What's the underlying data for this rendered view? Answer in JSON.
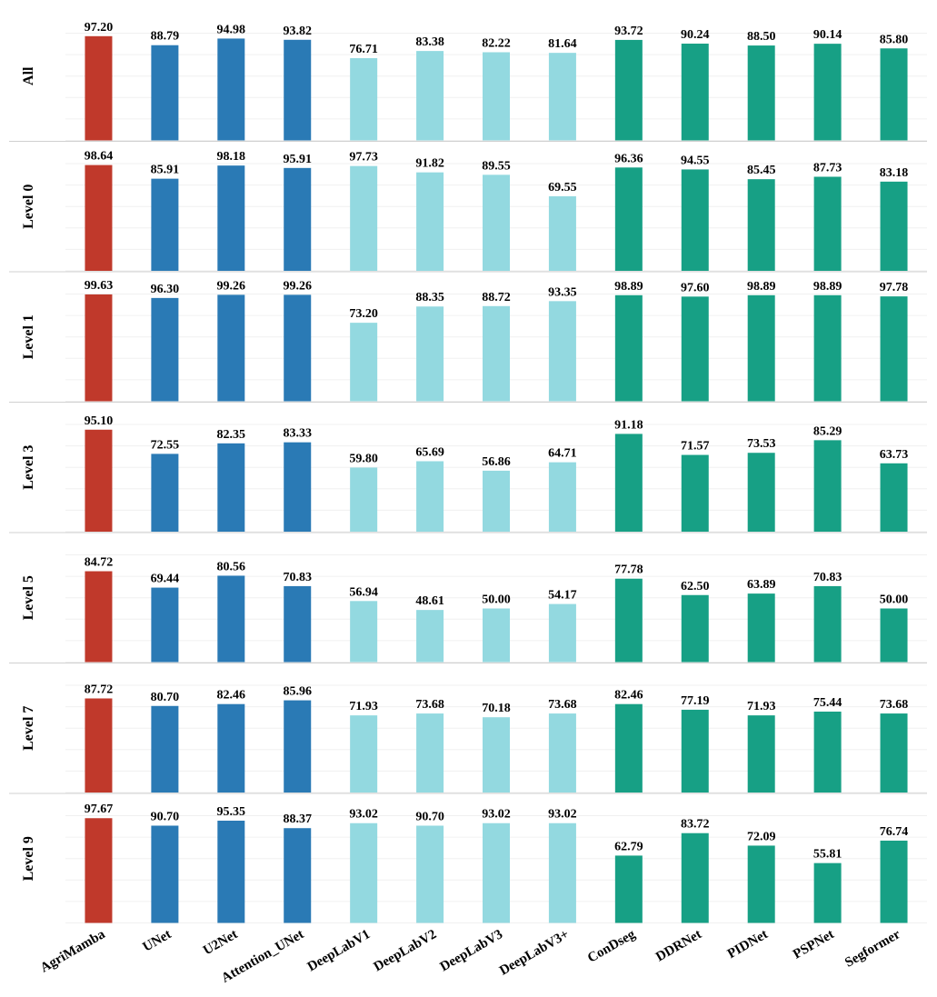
{
  "chart_data": {
    "type": "bar",
    "categories": [
      "AgriMamba",
      "UNet",
      "U2Net",
      "Attention_UNet",
      "DeepLabV1",
      "DeepLabV2",
      "DeepLabV3",
      "DeepLabV3+",
      "ConDseg",
      "DDRNet",
      "PIDNet",
      "PSPNet",
      "Segformer"
    ],
    "colors": [
      "#c0392b",
      "#2a7ab5",
      "#2a7ab5",
      "#2a7ab5",
      "#93d9e0",
      "#93d9e0",
      "#93d9e0",
      "#93d9e0",
      "#17a085",
      "#17a085",
      "#17a085",
      "#17a085",
      "#17a085"
    ],
    "ylim": [
      0,
      100
    ],
    "yticks": [
      0,
      20,
      40,
      60,
      80,
      100
    ],
    "grid": true,
    "series": [
      {
        "name": "All",
        "values": [
          97.2,
          88.79,
          94.98,
          93.82,
          76.71,
          83.38,
          82.22,
          81.64,
          93.72,
          90.24,
          88.5,
          90.14,
          85.8
        ],
        "value_labels": [
          "97.20",
          "88.79",
          "94.98",
          "93.82",
          "76.71",
          "83.38",
          "82.22",
          "81.64",
          "93.72",
          "90.24",
          "88.50",
          "90.14",
          "85.80"
        ]
      },
      {
        "name": "Level 0",
        "values": [
          98.64,
          85.91,
          98.18,
          95.91,
          97.73,
          91.82,
          89.55,
          69.55,
          96.36,
          94.55,
          85.45,
          87.73,
          83.18
        ],
        "value_labels": [
          "98.64",
          "85.91",
          "98.18",
          "95.91",
          "97.73",
          "91.82",
          "89.55",
          "69.55",
          "96.36",
          "94.55",
          "85.45",
          "87.73",
          "83.18"
        ]
      },
      {
        "name": "Level 1",
        "values": [
          99.63,
          96.3,
          99.26,
          99.26,
          73.2,
          88.35,
          88.72,
          93.35,
          98.89,
          97.6,
          98.89,
          98.89,
          97.78
        ],
        "value_labels": [
          "99.63",
          "96.30",
          "99.26",
          "99.26",
          "73.20",
          "88.35",
          "88.72",
          "93.35",
          "98.89",
          "97.60",
          "98.89",
          "98.89",
          "97.78"
        ]
      },
      {
        "name": "Level 3",
        "values": [
          95.1,
          72.55,
          82.35,
          83.33,
          59.8,
          65.69,
          56.86,
          64.71,
          91.18,
          71.57,
          73.53,
          85.29,
          63.73
        ],
        "value_labels": [
          "95.10",
          "72.55",
          "82.35",
          "83.33",
          "59.80",
          "65.69",
          "56.86",
          "64.71",
          "91.18",
          "71.57",
          "73.53",
          "85.29",
          "63.73"
        ]
      },
      {
        "name": "Level 5",
        "values": [
          84.72,
          69.44,
          80.56,
          70.83,
          56.94,
          48.61,
          50.0,
          54.17,
          77.78,
          62.5,
          63.89,
          70.83,
          50.0
        ],
        "value_labels": [
          "84.72",
          "69.44",
          "80.56",
          "70.83",
          "56.94",
          "48.61",
          "50.00",
          "54.17",
          "77.78",
          "62.50",
          "63.89",
          "70.83",
          "50.00"
        ]
      },
      {
        "name": "Level 7",
        "values": [
          87.72,
          80.7,
          82.46,
          85.96,
          71.93,
          73.68,
          70.18,
          73.68,
          82.46,
          77.19,
          71.93,
          75.44,
          73.68
        ],
        "value_labels": [
          "87.72",
          "80.70",
          "82.46",
          "85.96",
          "71.93",
          "73.68",
          "70.18",
          "73.68",
          "82.46",
          "77.19",
          "71.93",
          "75.44",
          "73.68"
        ]
      },
      {
        "name": "Level 9",
        "values": [
          97.67,
          90.7,
          95.35,
          88.37,
          93.02,
          90.7,
          93.02,
          93.02,
          62.79,
          83.72,
          72.09,
          55.81,
          76.74
        ],
        "value_labels": [
          "97.67",
          "90.70",
          "95.35",
          "88.37",
          "93.02",
          "90.70",
          "93.02",
          "93.02",
          "62.79",
          "83.72",
          "72.09",
          "55.81",
          "76.74"
        ]
      }
    ]
  }
}
